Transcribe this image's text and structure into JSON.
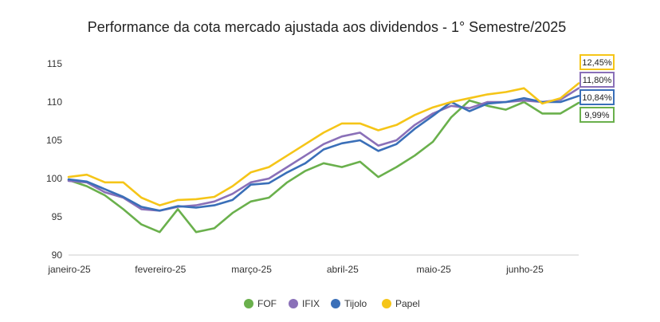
{
  "chart_data": {
    "type": "line",
    "title": "Performance da cota mercado ajustada aos dividendos - 1° Semestre/2025",
    "xlabel": "",
    "ylabel": "",
    "ylim": [
      90,
      115
    ],
    "yticks": [
      "90",
      "95",
      "100",
      "105",
      "110",
      "115"
    ],
    "categories": [
      "janeiro-25",
      "fevereiro-25",
      "março-25",
      "abril-25",
      "maio-25",
      "junho-25"
    ],
    "grid": false,
    "legend": "bottom",
    "series": [
      {
        "name": "FOF",
        "color": "#6ab04c",
        "end_label": "9,99%",
        "x": [
          0,
          0.2,
          0.4,
          0.6,
          0.8,
          1.0,
          1.2,
          1.4,
          1.6,
          1.8,
          2.0,
          2.2,
          2.4,
          2.6,
          2.8,
          3.0,
          3.2,
          3.4,
          3.6,
          3.8,
          4.0,
          4.2,
          4.4,
          4.6,
          4.8,
          5.0,
          5.2,
          5.4,
          5.6
        ],
        "values": [
          99.8,
          99.0,
          97.8,
          96.0,
          94.0,
          93.0,
          96.0,
          93.0,
          93.5,
          95.5,
          97.0,
          97.5,
          99.5,
          101.0,
          102.0,
          101.5,
          102.2,
          100.2,
          101.5,
          103.0,
          104.8,
          108.0,
          110.2,
          109.5,
          109.0,
          110.0,
          108.5,
          108.5,
          109.9
        ]
      },
      {
        "name": "IFIX",
        "color": "#8a70b8",
        "end_label": "11,80%",
        "x": [
          0,
          0.2,
          0.4,
          0.6,
          0.8,
          1.0,
          1.2,
          1.4,
          1.6,
          1.8,
          2.0,
          2.2,
          2.4,
          2.6,
          2.8,
          3.0,
          3.2,
          3.4,
          3.6,
          3.8,
          4.0,
          4.2,
          4.4,
          4.6,
          4.8,
          5.0,
          5.2,
          5.4,
          5.6
        ],
        "values": [
          99.7,
          99.5,
          98.2,
          97.5,
          96.0,
          95.8,
          96.3,
          96.5,
          97.0,
          98.0,
          99.5,
          100.0,
          101.5,
          103.0,
          104.5,
          105.5,
          106.0,
          104.3,
          105.0,
          107.0,
          108.5,
          109.5,
          109.2,
          110.0,
          110.0,
          110.2,
          110.0,
          110.3,
          111.8
        ]
      },
      {
        "name": "Tijolo",
        "color": "#3a6fb8",
        "end_label": "10,84%",
        "x": [
          0,
          0.2,
          0.4,
          0.6,
          0.8,
          1.0,
          1.2,
          1.4,
          1.6,
          1.8,
          2.0,
          2.2,
          2.4,
          2.6,
          2.8,
          3.0,
          3.2,
          3.4,
          3.6,
          3.8,
          4.0,
          4.2,
          4.4,
          4.6,
          4.8,
          5.0,
          5.2,
          5.4,
          5.6
        ],
        "values": [
          99.9,
          99.6,
          98.6,
          97.6,
          96.3,
          95.8,
          96.4,
          96.2,
          96.5,
          97.2,
          99.2,
          99.4,
          100.8,
          102.0,
          103.8,
          104.6,
          105.0,
          103.6,
          104.5,
          106.5,
          108.2,
          110.0,
          108.8,
          109.8,
          110.0,
          110.5,
          110.0,
          110.0,
          110.8
        ]
      },
      {
        "name": "Papel",
        "color": "#f5c518",
        "end_label": "12,45%",
        "x": [
          0,
          0.2,
          0.4,
          0.6,
          0.8,
          1.0,
          1.2,
          1.4,
          1.6,
          1.8,
          2.0,
          2.2,
          2.4,
          2.6,
          2.8,
          3.0,
          3.2,
          3.4,
          3.6,
          3.8,
          4.0,
          4.2,
          4.4,
          4.6,
          4.8,
          5.0,
          5.2,
          5.4,
          5.6
        ],
        "values": [
          100.2,
          100.5,
          99.5,
          99.5,
          97.5,
          96.5,
          97.2,
          97.3,
          97.6,
          99.0,
          100.8,
          101.5,
          103.0,
          104.5,
          106.0,
          107.2,
          107.2,
          106.3,
          107.0,
          108.3,
          109.3,
          110.0,
          110.5,
          111.0,
          111.3,
          111.8,
          109.8,
          110.5,
          112.45
        ]
      }
    ]
  }
}
